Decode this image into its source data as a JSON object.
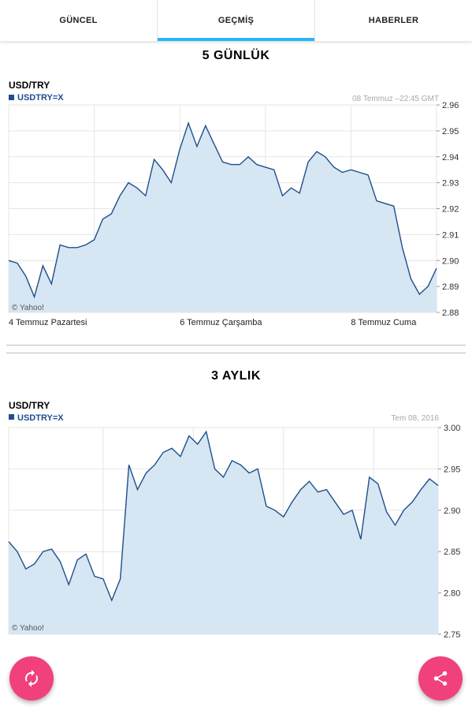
{
  "tabs": [
    {
      "label": "GÜNCEL",
      "active": false
    },
    {
      "label": "GEÇMİŞ",
      "active": true
    },
    {
      "label": "HABERLER",
      "active": false
    }
  ],
  "sections": {
    "five_day": {
      "title": "5 GÜNLÜK",
      "symbol_title": "USD/TRY",
      "legend": "USDTRY=X",
      "timestamp": "08 Temmuz –22:45 GMT",
      "watermark": "© Yahoo!"
    },
    "three_month": {
      "title": "3 AYLIK",
      "symbol_title": "USD/TRY",
      "legend": "USDTRY=X",
      "timestamp": "Tem 08, 2016",
      "watermark": "© Yahoo!"
    }
  },
  "colors": {
    "line": "#1f4e8c",
    "fill": "#d6e6f2",
    "grid": "#e6e6e6",
    "tab_indicator": "#29b6f6",
    "fab": "#f0417d"
  },
  "icons": {
    "refresh": "refresh-icon",
    "share": "share-icon"
  },
  "chart_data": [
    {
      "type": "area",
      "series": [
        {
          "name": "USDTRY=X"
        }
      ],
      "ylim": [
        2.88,
        2.96
      ],
      "yticks": [
        "2.96",
        "2.95",
        "2.94",
        "2.93",
        "2.92",
        "2.91",
        "2.90",
        "2.89",
        "2.88"
      ],
      "xtick_labels": [
        "4 Temmuz Pazartesi",
        "6 Temmuz Çarşamba",
        "8 Temmuz Cuma"
      ],
      "grid": true,
      "x": [
        0,
        2,
        4,
        6,
        8,
        10,
        12,
        14,
        16,
        18,
        20,
        22,
        24,
        26,
        28,
        30,
        32,
        34,
        36,
        38,
        40,
        42,
        44,
        46,
        48,
        50,
        52,
        54,
        56,
        58,
        60,
        62,
        64,
        66,
        68,
        70,
        72,
        74,
        76,
        78,
        80,
        82,
        84,
        86,
        88,
        90,
        92,
        94,
        96,
        98,
        100
      ],
      "values": [
        2.9,
        2.899,
        2.894,
        2.886,
        2.898,
        2.891,
        2.906,
        2.905,
        2.905,
        2.906,
        2.908,
        2.916,
        2.918,
        2.925,
        2.93,
        2.928,
        2.925,
        2.939,
        2.935,
        2.93,
        2.943,
        2.953,
        2.944,
        2.952,
        2.945,
        2.938,
        2.937,
        2.937,
        2.94,
        2.937,
        2.936,
        2.935,
        2.925,
        2.928,
        2.926,
        2.938,
        2.942,
        2.94,
        2.936,
        2.934,
        2.935,
        2.934,
        2.933,
        2.923,
        2.922,
        2.921,
        2.905,
        2.893,
        2.887,
        2.89,
        2.897
      ]
    },
    {
      "type": "area",
      "series": [
        {
          "name": "USDTRY=X"
        }
      ],
      "ylim": [
        2.75,
        3.0
      ],
      "yticks": [
        "3.00",
        "2.95",
        "2.90",
        "2.85",
        "2.80",
        "2.75"
      ],
      "grid": true,
      "x": [
        0,
        2,
        4,
        6,
        8,
        10,
        12,
        14,
        16,
        18,
        20,
        22,
        24,
        26,
        28,
        30,
        32,
        34,
        36,
        38,
        40,
        42,
        44,
        46,
        48,
        50,
        52,
        54,
        56,
        58,
        60,
        62,
        64,
        66,
        68,
        70,
        72,
        74,
        76,
        78,
        80,
        82,
        84,
        86,
        88,
        90,
        92,
        94,
        96,
        98,
        100
      ],
      "values": [
        2.862,
        2.85,
        2.829,
        2.835,
        2.85,
        2.853,
        2.838,
        2.81,
        2.84,
        2.847,
        2.82,
        2.817,
        2.791,
        2.817,
        2.955,
        2.925,
        2.945,
        2.955,
        2.97,
        2.975,
        2.965,
        2.99,
        2.98,
        2.995,
        2.95,
        2.94,
        2.96,
        2.955,
        2.945,
        2.95,
        2.905,
        2.9,
        2.892,
        2.91,
        2.925,
        2.935,
        2.922,
        2.925,
        2.91,
        2.895,
        2.9,
        2.865,
        2.94,
        2.932,
        2.898,
        2.882,
        2.9,
        2.91,
        2.925,
        2.938,
        2.93
      ]
    }
  ]
}
